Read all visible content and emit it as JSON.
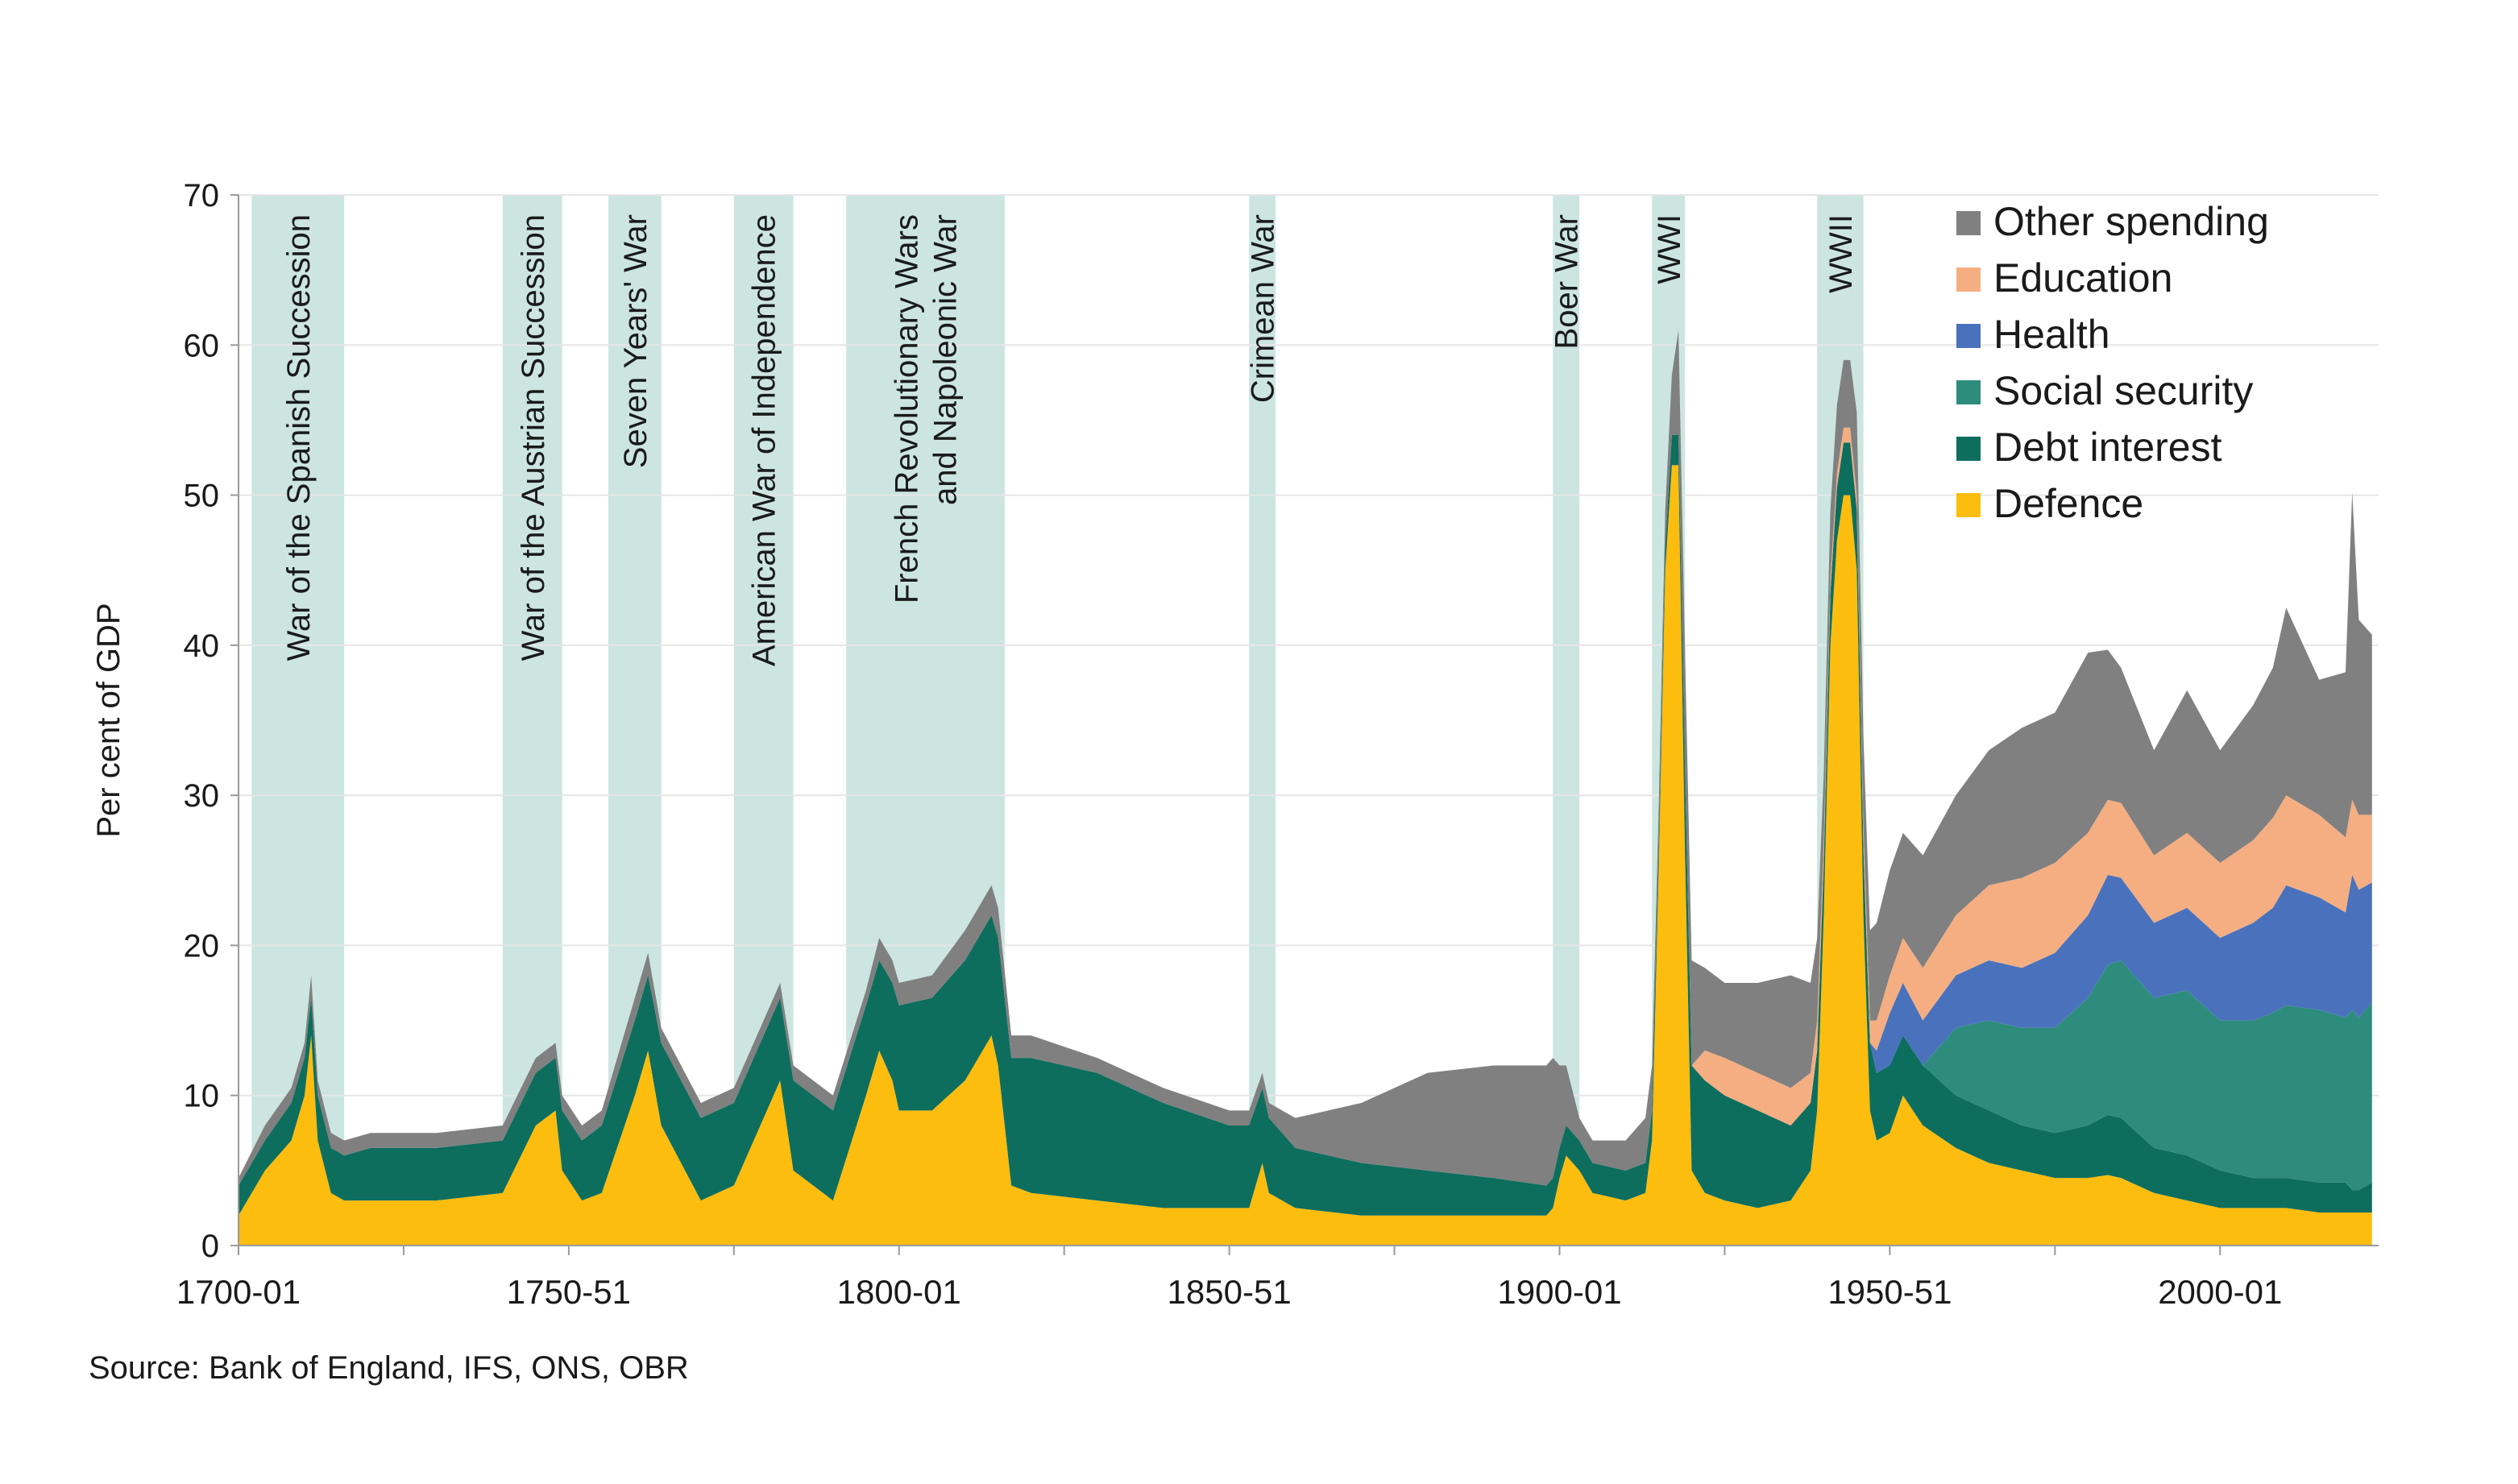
{
  "chart_data": {
    "type": "area",
    "stacked": true,
    "ylabel": "Per cent of GDP",
    "xlabel": "",
    "ylim": [
      0,
      70
    ],
    "yticks": [
      0,
      10,
      20,
      30,
      40,
      50,
      60,
      70
    ],
    "xlim": [
      1700,
      2024
    ],
    "xticks": [
      {
        "year": 1700,
        "label": "1700-01"
      },
      {
        "year": 1750,
        "label": "1750-51"
      },
      {
        "year": 1800,
        "label": "1800-01"
      },
      {
        "year": 1850,
        "label": "1850-51"
      },
      {
        "year": 1900,
        "label": "1900-01"
      },
      {
        "year": 1950,
        "label": "1950-51"
      },
      {
        "year": 2000,
        "label": "2000-01"
      }
    ],
    "x": [
      1700,
      1704,
      1708,
      1710,
      1711,
      1712,
      1714,
      1716,
      1720,
      1730,
      1740,
      1745,
      1748,
      1749,
      1752,
      1755,
      1760,
      1762,
      1764,
      1770,
      1775,
      1780,
      1782,
      1784,
      1790,
      1795,
      1797,
      1799,
      1800,
      1805,
      1810,
      1814,
      1815,
      1817,
      1820,
      1830,
      1840,
      1850,
      1853,
      1855,
      1856,
      1858,
      1860,
      1870,
      1880,
      1890,
      1898,
      1899,
      1900,
      1901,
      1903,
      1905,
      1910,
      1913,
      1914,
      1915,
      1916,
      1917,
      1918,
      1919,
      1920,
      1922,
      1925,
      1930,
      1935,
      1938,
      1939,
      1940,
      1941,
      1942,
      1943,
      1944,
      1945,
      1946,
      1947,
      1948,
      1950,
      1952,
      1955,
      1960,
      1965,
      1970,
      1975,
      1980,
      1983,
      1985,
      1990,
      1995,
      2000,
      2005,
      2008,
      2010,
      2015,
      2019,
      2020,
      2021,
      2023
    ],
    "series": [
      {
        "name": "Defence",
        "color": "#fdbd0f",
        "values": [
          2.0,
          5.0,
          7.0,
          10.0,
          14.0,
          7.0,
          3.5,
          3.0,
          3.0,
          3.0,
          3.5,
          8.0,
          9.0,
          5.0,
          3.0,
          3.5,
          10.0,
          13.0,
          8.0,
          3.0,
          4.0,
          9.0,
          11.0,
          5.0,
          3.0,
          10.0,
          13.0,
          11.0,
          9.0,
          9.0,
          11.0,
          14.0,
          12.0,
          4.0,
          3.5,
          3.0,
          2.5,
          2.5,
          2.5,
          5.5,
          3.5,
          3.0,
          2.5,
          2.0,
          2.0,
          2.0,
          2.0,
          2.5,
          4.5,
          6.0,
          5.0,
          3.5,
          3.0,
          3.5,
          7.0,
          25.0,
          45.0,
          52.0,
          52.0,
          26.0,
          5.0,
          3.5,
          3.0,
          2.5,
          3.0,
          5.0,
          9.0,
          22.0,
          40.0,
          47.0,
          50.0,
          50.0,
          45.0,
          22.0,
          9.0,
          7.0,
          7.5,
          10.0,
          8.0,
          6.5,
          5.5,
          5.0,
          4.5,
          4.5,
          4.7,
          4.5,
          3.5,
          3.0,
          2.5,
          2.5,
          2.5,
          2.5,
          2.2,
          2.2,
          2.2,
          2.2,
          2.2
        ]
      },
      {
        "name": "Debt interest",
        "color": "#0d6e5e",
        "values": [
          2.0,
          2.0,
          2.5,
          2.5,
          2.5,
          3.0,
          3.0,
          3.0,
          3.5,
          3.5,
          3.5,
          3.5,
          3.5,
          4.0,
          4.0,
          4.5,
          5.0,
          5.0,
          5.5,
          5.5,
          5.5,
          5.5,
          5.5,
          6.0,
          6.0,
          6.0,
          6.0,
          6.5,
          7.0,
          7.5,
          8.0,
          8.0,
          8.5,
          8.5,
          9.0,
          8.5,
          7.0,
          5.5,
          5.5,
          5.0,
          5.0,
          4.5,
          4.0,
          3.5,
          3.0,
          2.5,
          2.0,
          2.0,
          2.0,
          2.0,
          2.0,
          2.0,
          2.0,
          2.0,
          2.0,
          1.5,
          1.5,
          2.0,
          2.0,
          5.5,
          7.0,
          7.5,
          7.0,
          6.5,
          5.0,
          4.5,
          4.0,
          3.5,
          3.5,
          3.5,
          3.5,
          3.5,
          4.0,
          4.5,
          4.5,
          4.5,
          4.5,
          4.0,
          4.0,
          3.5,
          3.5,
          3.0,
          3.0,
          3.5,
          4.0,
          4.0,
          3.0,
          3.0,
          2.5,
          2.0,
          2.0,
          2.0,
          2.0,
          2.0,
          1.5,
          1.5,
          2.0
        ]
      },
      {
        "name": "Social security",
        "color": "#2d8c7c",
        "values": [
          0,
          0,
          0,
          0,
          0,
          0,
          0,
          0,
          0,
          0,
          0,
          0,
          0,
          0,
          0,
          0,
          0,
          0,
          0,
          0,
          0,
          0,
          0,
          0,
          0,
          0,
          0,
          0,
          0,
          0,
          0,
          0,
          0,
          0,
          0,
          0,
          0,
          0,
          0,
          0,
          0,
          0,
          0,
          0,
          0,
          0,
          0,
          0,
          0,
          0,
          0,
          0,
          0,
          0,
          0,
          0,
          0,
          0,
          0,
          0,
          0,
          0,
          0,
          0,
          0,
          0,
          0,
          0,
          0,
          0,
          0,
          0,
          0,
          0,
          0,
          0,
          0,
          0,
          0,
          4.5,
          6.0,
          6.5,
          7.0,
          8.5,
          10.0,
          10.5,
          10.0,
          11.0,
          10.0,
          10.5,
          11.0,
          11.5,
          11.5,
          11.0,
          12.0,
          11.5,
          12.0
        ]
      },
      {
        "name": "Health",
        "color": "#4a72bc",
        "values": [
          0,
          0,
          0,
          0,
          0,
          0,
          0,
          0,
          0,
          0,
          0,
          0,
          0,
          0,
          0,
          0,
          0,
          0,
          0,
          0,
          0,
          0,
          0,
          0,
          0,
          0,
          0,
          0,
          0,
          0,
          0,
          0,
          0,
          0,
          0,
          0,
          0,
          0,
          0,
          0,
          0,
          0,
          0,
          0,
          0,
          0,
          0,
          0,
          0,
          0,
          0,
          0,
          0,
          0,
          0,
          0,
          0,
          0,
          0,
          0,
          0,
          0,
          0,
          0,
          0,
          0,
          0,
          0,
          0,
          0,
          0,
          0,
          0,
          0,
          0,
          1.5,
          3.5,
          3.5,
          3.0,
          3.5,
          4.0,
          4.0,
          5.0,
          5.5,
          6.0,
          5.5,
          5.0,
          5.5,
          5.5,
          6.5,
          7.0,
          8.0,
          7.5,
          7.0,
          9.0,
          8.5,
          8.0
        ]
      },
      {
        "name": "Education",
        "color": "#f4ae82",
        "values": [
          0,
          0,
          0,
          0,
          0,
          0,
          0,
          0,
          0,
          0,
          0,
          0,
          0,
          0,
          0,
          0,
          0,
          0,
          0,
          0,
          0,
          0,
          0,
          0,
          0,
          0,
          0,
          0,
          0,
          0,
          0,
          0,
          0,
          0,
          0,
          0,
          0,
          0,
          0,
          0,
          0,
          0,
          0,
          0,
          0,
          0,
          0,
          0,
          0,
          0,
          0,
          0,
          0,
          0,
          0,
          0,
          0,
          0,
          0,
          0,
          0,
          2.0,
          2.5,
          2.5,
          2.5,
          2.0,
          2.0,
          1.5,
          1.0,
          1.0,
          1.0,
          1.0,
          1.0,
          1.5,
          1.5,
          2.0,
          2.5,
          3.0,
          3.5,
          4.0,
          5.0,
          6.0,
          6.0,
          5.5,
          5.0,
          5.0,
          4.5,
          5.0,
          5.0,
          5.5,
          6.0,
          6.0,
          5.5,
          5.0,
          5.0,
          5.0,
          4.5
        ]
      },
      {
        "name": "Other spending",
        "color": "#808080",
        "values": [
          0.5,
          1.0,
          1.0,
          1.0,
          1.5,
          1.0,
          1.0,
          1.0,
          1.0,
          1.0,
          1.0,
          1.0,
          1.0,
          1.0,
          1.0,
          1.0,
          1.5,
          1.5,
          1.0,
          1.0,
          1.0,
          1.0,
          1.0,
          1.0,
          1.0,
          1.0,
          1.5,
          1.5,
          1.5,
          1.5,
          2.0,
          2.0,
          2.0,
          1.5,
          1.5,
          1.0,
          1.0,
          1.0,
          1.0,
          1.0,
          1.0,
          1.5,
          2.0,
          4.0,
          6.5,
          7.5,
          8.0,
          8.0,
          5.5,
          4.0,
          1.5,
          1.5,
          2.0,
          3.0,
          3.0,
          2.5,
          2.5,
          4.0,
          7.0,
          8.0,
          7.0,
          5.5,
          5.0,
          6.0,
          7.5,
          6.0,
          5.5,
          4.5,
          4.5,
          4.5,
          4.5,
          4.5,
          5.5,
          6.0,
          6.0,
          6.5,
          7.0,
          7.0,
          7.5,
          8.0,
          9.0,
          10.0,
          10.0,
          12.0,
          10.0,
          9.0,
          7.0,
          9.5,
          7.5,
          9.0,
          10.0,
          12.5,
          9.0,
          11.0,
          20.5,
          13.0,
          12.0
        ]
      }
    ],
    "wars": [
      {
        "label": "War of the Spanish Succession",
        "start": 1702,
        "end": 1716
      },
      {
        "label": "War of the Austrian Succession",
        "start": 1740,
        "end": 1749
      },
      {
        "label": "Seven Years' War",
        "start": 1756,
        "end": 1764
      },
      {
        "label": "American War of Independence",
        "start": 1775,
        "end": 1784
      },
      {
        "label": "French Revolutionary Wars\nand  Napoleonic War",
        "start": 1792,
        "end": 1816
      },
      {
        "label": "Crimean War",
        "start": 1853,
        "end": 1857
      },
      {
        "label": "Boer War",
        "start": 1899,
        "end": 1903
      },
      {
        "label": "WWI",
        "start": 1914,
        "end": 1919
      },
      {
        "label": "WWII",
        "start": 1939,
        "end": 1946
      }
    ],
    "war_color": "#cce5e0",
    "legend_position": "top-right",
    "grid": true
  },
  "source_note": "Source: Bank of England, IFS, ONS, OBR"
}
